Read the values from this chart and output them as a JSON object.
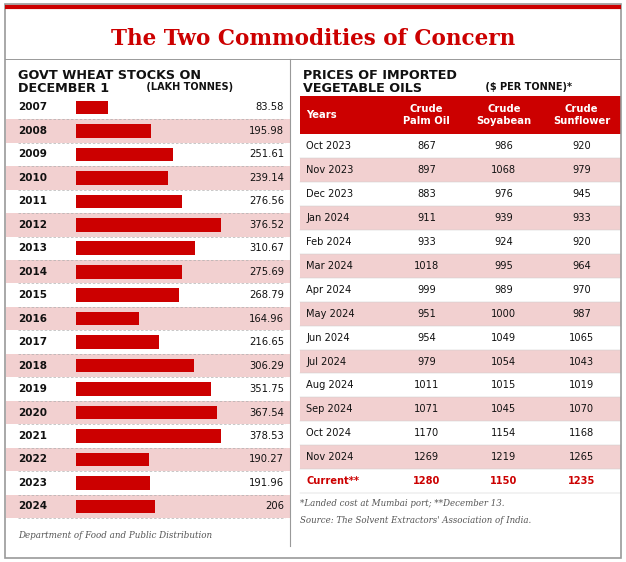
{
  "title": "The Two Commodities of Concern",
  "left_title_line1": "GOVT WHEAT STOCKS ON",
  "left_title_line2": "DECEMBER 1",
  "left_title_unit": " (LAKH TONNES)",
  "right_title_line1": "PRICES OF IMPORTED",
  "right_title_line2": "VEGETABLE OILS",
  "right_title_unit": " ($ PER TONNE)*",
  "bar_years": [
    2007,
    2008,
    2009,
    2010,
    2011,
    2012,
    2013,
    2014,
    2015,
    2016,
    2017,
    2018,
    2019,
    2020,
    2021,
    2022,
    2023,
    2024
  ],
  "bar_values": [
    83.58,
    195.98,
    251.61,
    239.14,
    276.56,
    376.52,
    310.67,
    275.69,
    268.79,
    164.96,
    216.65,
    306.29,
    351.75,
    367.54,
    378.53,
    190.27,
    191.96,
    206
  ],
  "bar_color": "#cc0000",
  "left_footer": "Department of Food and Public Distribution",
  "table_headers": [
    "Years",
    "Crude\nPalm Oil",
    "Crude\nSoyabean",
    "Crude\nSunflower"
  ],
  "table_years": [
    "Oct 2023",
    "Nov 2023",
    "Dec 2023",
    "Jan 2024",
    "Feb 2024",
    "Mar 2024",
    "Apr 2024",
    "May 2024",
    "Jun 2024",
    "Jul 2024",
    "Aug 2024",
    "Sep 2024",
    "Oct 2024",
    "Nov 2024",
    "Current**"
  ],
  "table_palm": [
    867,
    897,
    883,
    911,
    933,
    1018,
    999,
    951,
    954,
    979,
    1011,
    1071,
    1170,
    1269,
    1280
  ],
  "table_soya": [
    986,
    1068,
    976,
    939,
    924,
    995,
    989,
    1000,
    1049,
    1054,
    1015,
    1045,
    1154,
    1219,
    1150
  ],
  "table_sun": [
    920,
    979,
    945,
    933,
    920,
    964,
    970,
    987,
    1065,
    1043,
    1019,
    1070,
    1168,
    1265,
    1235
  ],
  "right_footer_line1": "*Landed cost at Mumbai port; **December 13.",
  "right_footer_line2": "Source: The Solvent Extractors' Association of India.",
  "header_bg": "#cc0000",
  "header_fg": "#ffffff",
  "row_bg_odd": "#ffffff",
  "row_bg_even": "#f2d0d0",
  "current_color": "#cc0000",
  "bg_color": "#ffffff"
}
